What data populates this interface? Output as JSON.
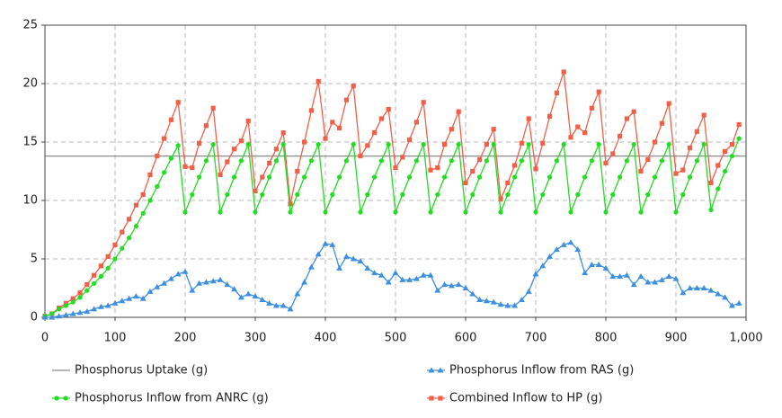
{
  "chart_data": {
    "type": "line",
    "x": [
      0,
      10,
      20,
      30,
      40,
      50,
      60,
      70,
      80,
      90,
      100,
      110,
      120,
      130,
      140,
      150,
      160,
      170,
      180,
      190,
      200,
      210,
      220,
      230,
      240,
      250,
      260,
      270,
      280,
      290,
      300,
      310,
      320,
      330,
      340,
      350,
      360,
      370,
      380,
      390,
      400,
      410,
      420,
      430,
      440,
      450,
      460,
      470,
      480,
      490,
      500,
      510,
      520,
      530,
      540,
      550,
      560,
      570,
      580,
      590,
      600,
      610,
      620,
      630,
      640,
      650,
      660,
      670,
      680,
      690,
      700,
      710,
      720,
      730,
      740,
      750,
      760,
      770,
      780,
      790,
      800,
      810,
      820,
      830,
      840,
      850,
      860,
      870,
      880,
      890,
      900,
      910,
      920,
      930,
      940,
      950,
      960,
      970,
      980,
      990
    ],
    "uptake": {
      "name": "Phosphorus Uptake (g)",
      "color": "#8c8c8c",
      "value": 13.8
    },
    "series": [
      {
        "name": "Phosphorus Inflow from RAS (g)",
        "color": "#3d8fe0",
        "marker": "triangle",
        "values": [
          0,
          0,
          0.1,
          0.2,
          0.3,
          0.4,
          0.5,
          0.7,
          0.9,
          1.0,
          1.2,
          1.4,
          1.6,
          1.8,
          1.6,
          2.2,
          2.6,
          2.9,
          3.3,
          3.7,
          3.9,
          2.3,
          2.9,
          3.0,
          3.1,
          3.2,
          2.8,
          2.4,
          1.7,
          2.0,
          1.8,
          1.5,
          1.2,
          1.0,
          1.0,
          0.7,
          2.0,
          3.0,
          4.3,
          5.4,
          6.3,
          6.2,
          4.2,
          5.2,
          5.0,
          4.8,
          4.2,
          3.8,
          3.6,
          3.0,
          3.8,
          3.2,
          3.2,
          3.3,
          3.6,
          3.6,
          2.3,
          2.8,
          2.7,
          2.8,
          2.5,
          2.0,
          1.5,
          1.4,
          1.3,
          1.1,
          1.0,
          1.0,
          1.5,
          2.2,
          3.7,
          4.4,
          5.2,
          5.8,
          6.2,
          6.4,
          5.8,
          3.8,
          4.5,
          4.5,
          4.2,
          3.5,
          3.5,
          3.6,
          2.8,
          3.5,
          3.0,
          3.0,
          3.2,
          3.5,
          3.3,
          2.1,
          2.5,
          2.5,
          2.5,
          2.3,
          2.0,
          1.7,
          1.0,
          1.2
        ]
      },
      {
        "name": "Phosphorus Inflow from ANRC (g)",
        "color": "#22dd22",
        "marker": "circle",
        "values": [
          0.1,
          0.3,
          0.7,
          1.0,
          1.3,
          1.7,
          2.3,
          2.9,
          3.5,
          4.2,
          5.0,
          5.9,
          6.8,
          7.8,
          8.9,
          10.0,
          11.2,
          12.4,
          13.6,
          14.7,
          9.0,
          10.5,
          12.0,
          13.4,
          14.8,
          9.0,
          10.5,
          12.0,
          13.4,
          14.8,
          9.0,
          10.5,
          12.0,
          13.4,
          14.8,
          9.0,
          10.5,
          12.0,
          13.4,
          14.8,
          9.0,
          10.5,
          12.0,
          13.4,
          14.8,
          9.0,
          10.5,
          12.0,
          13.4,
          14.8,
          9.0,
          10.5,
          12.0,
          13.4,
          14.8,
          9.0,
          10.5,
          12.0,
          13.4,
          14.8,
          9.0,
          10.5,
          12.0,
          13.4,
          14.8,
          9.0,
          10.5,
          12.0,
          13.4,
          14.8,
          9.0,
          10.5,
          12.0,
          13.4,
          14.8,
          9.0,
          10.5,
          12.0,
          13.4,
          14.8,
          9.0,
          10.5,
          12.0,
          13.4,
          14.8,
          9.0,
          10.5,
          12.0,
          13.4,
          14.8,
          9.0,
          10.5,
          12.0,
          13.4,
          14.8,
          9.2,
          11.0,
          12.5,
          13.8,
          15.3
        ]
      },
      {
        "name": "Combined Inflow to HP (g)",
        "color": "#f06048",
        "marker": "square",
        "values": [
          0.1,
          0.3,
          0.8,
          1.2,
          1.6,
          2.1,
          2.8,
          3.6,
          4.4,
          5.2,
          6.2,
          7.3,
          8.4,
          9.6,
          10.5,
          12.2,
          13.8,
          15.3,
          16.9,
          18.4,
          12.9,
          12.8,
          14.9,
          16.4,
          17.9,
          12.2,
          13.3,
          14.4,
          15.1,
          16.8,
          10.8,
          12.0,
          13.2,
          14.4,
          15.8,
          9.7,
          12.5,
          15.0,
          17.7,
          20.2,
          15.3,
          16.7,
          16.2,
          18.6,
          19.8,
          13.8,
          14.7,
          15.8,
          17.0,
          17.8,
          12.8,
          13.7,
          15.2,
          16.7,
          18.4,
          12.6,
          12.8,
          14.8,
          16.1,
          17.6,
          11.5,
          12.5,
          13.5,
          14.8,
          16.1,
          10.1,
          11.5,
          13.0,
          14.9,
          17.0,
          12.7,
          14.9,
          17.2,
          19.2,
          21.0,
          15.4,
          16.3,
          15.8,
          17.9,
          19.3,
          13.2,
          14.0,
          15.5,
          17.0,
          17.6,
          12.5,
          13.5,
          15.0,
          16.6,
          18.3,
          12.3,
          12.6,
          14.5,
          15.9,
          17.3,
          11.5,
          13.0,
          14.2,
          14.8,
          16.5
        ]
      }
    ],
    "xlim": [
      0,
      1000
    ],
    "xticks": [
      0,
      100,
      200,
      300,
      400,
      500,
      600,
      700,
      800,
      900,
      {
        "value": 1000,
        "label": "1,000"
      }
    ],
    "ylim": [
      0,
      25
    ],
    "yticks": [
      0,
      5,
      10,
      15,
      20,
      25
    ],
    "grid": true
  }
}
